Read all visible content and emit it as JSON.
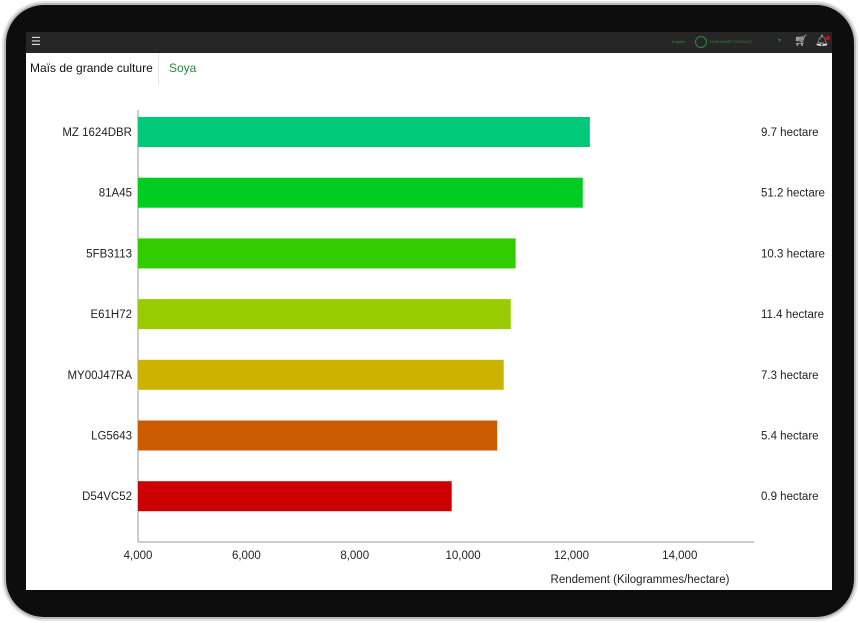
{
  "topbar": {
    "menu_icon": "hamburger-icon",
    "language": "English",
    "user_name": "NOM NAME CONTACT",
    "cart_icon": "cart-icon",
    "bell_icon": "bell-icon"
  },
  "tabs": [
    {
      "label": "Maïs de grande culture",
      "active": true
    },
    {
      "label": "Soya",
      "active": false
    }
  ],
  "chart_data": {
    "type": "bar",
    "orientation": "horizontal",
    "categories": [
      "MZ 1624DBR",
      "81A45",
      "5FB3113",
      "E61H72",
      "MY00J47RA",
      "LG5643",
      "D54VC52"
    ],
    "values": [
      12340,
      12210,
      10970,
      10880,
      10750,
      10630,
      9790
    ],
    "colors": [
      "#00c97a",
      "#00cc22",
      "#33cc00",
      "#99cc00",
      "#ccb300",
      "#cc5a00",
      "#cc0000"
    ],
    "annotations": [
      "9.7 hectare",
      "51.2 hectare",
      "10.3 hectare",
      "11.4 hectare",
      "7.3 hectare",
      "5.4 hectare",
      "0.9 hectare"
    ],
    "xlabel": "Rendement (Kilogrammes/hectare)",
    "xlim": [
      4000,
      15370
    ],
    "xticks": [
      4000,
      6000,
      8000,
      10000,
      12000,
      14000
    ],
    "xtick_labels": [
      "4,000",
      "6,000",
      "8,000",
      "10,000",
      "12,000",
      "14,000"
    ],
    "grid": false
  }
}
